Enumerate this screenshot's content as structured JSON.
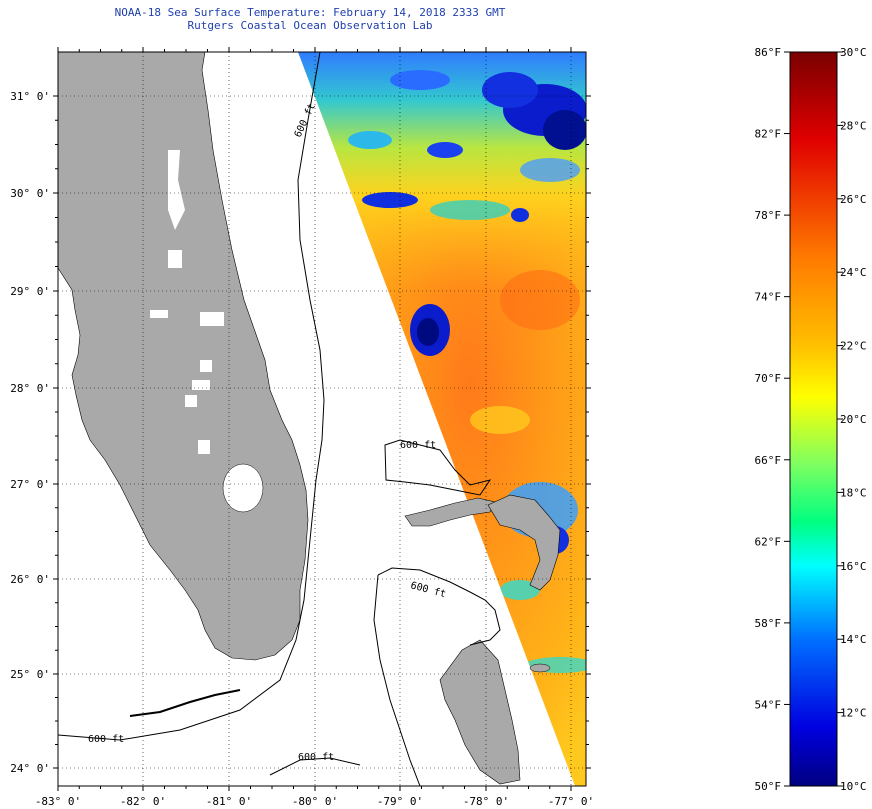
{
  "header": {
    "title": "NOAA-18 Sea Surface Temperature:  February 14, 2018 2333 GMT",
    "subtitle": "Rutgers Coastal Ocean Observation Lab"
  },
  "map": {
    "lat_labels": [
      "31° 0'",
      "30° 0'",
      "29° 0'",
      "28° 0'",
      "27° 0'",
      "26° 0'",
      "25° 0'",
      "24° 0'"
    ],
    "lon_labels": [
      "-83° 0'",
      "-82° 0'",
      "-81° 0'",
      "-80° 0'",
      "-79° 0'",
      "-78° 0'",
      "-77° 0'"
    ],
    "contour_labels": [
      "600 ft",
      "600 ft",
      "600 ft",
      "600 ft",
      "600 ft"
    ],
    "colors": {
      "land": "#a9a9a9",
      "no_data": "#ffffff",
      "title_text": "#1f3fae"
    }
  },
  "colorbar": {
    "f_labels": [
      "86°F",
      "82°F",
      "78°F",
      "74°F",
      "70°F",
      "66°F",
      "62°F",
      "58°F",
      "54°F",
      "50°F"
    ],
    "c_labels": [
      "30°C",
      "28°C",
      "26°C",
      "24°C",
      "22°C",
      "20°C",
      "18°C",
      "16°C",
      "14°C",
      "12°C",
      "10°C"
    ],
    "stops": [
      "#800000",
      "#ff0000",
      "#ff8c00",
      "#ffff00",
      "#80ff80",
      "#00ffff",
      "#0080ff",
      "#0000ff",
      "#000080"
    ]
  }
}
